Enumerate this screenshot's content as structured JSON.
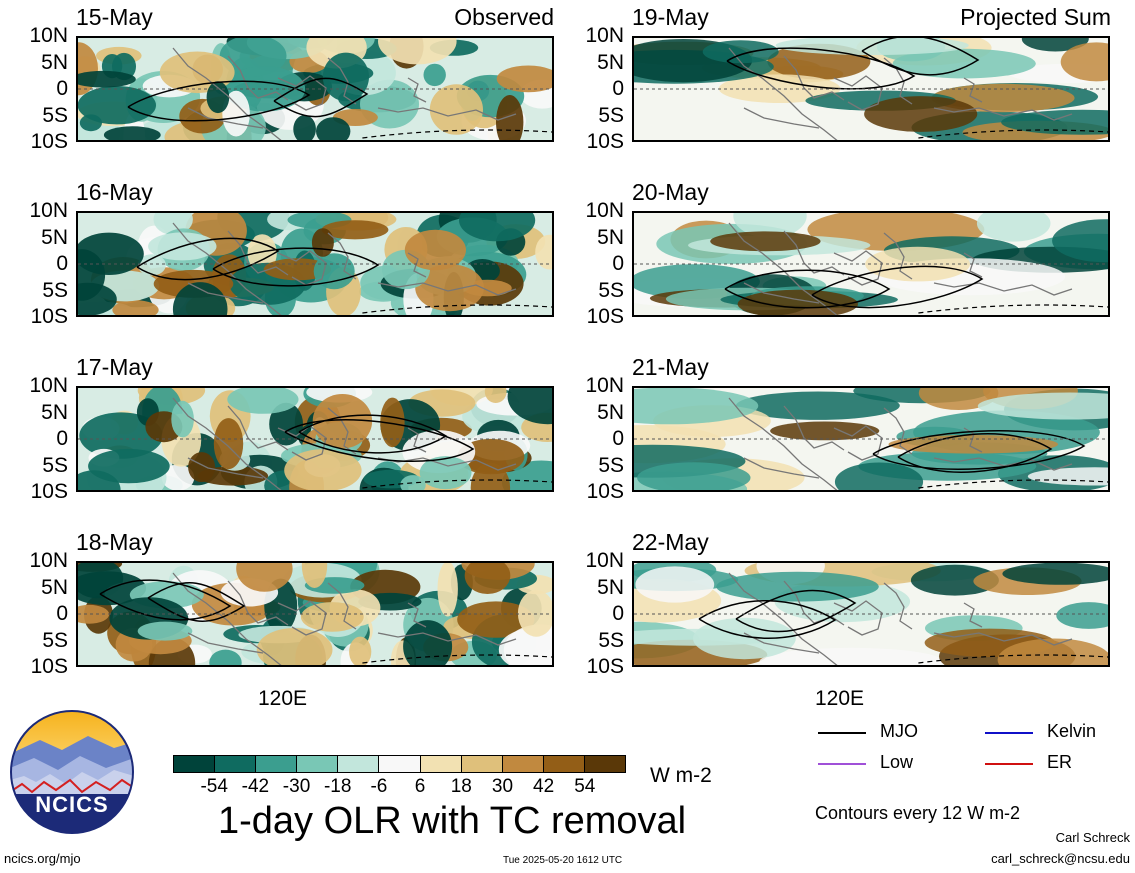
{
  "panels": {
    "left": [
      {
        "date": "15-May",
        "tag": "Observed"
      },
      {
        "date": "16-May",
        "tag": ""
      },
      {
        "date": "17-May",
        "tag": ""
      },
      {
        "date": "18-May",
        "tag": ""
      }
    ],
    "right": [
      {
        "date": "19-May",
        "tag": "Projected Sum"
      },
      {
        "date": "20-May",
        "tag": ""
      },
      {
        "date": "21-May",
        "tag": ""
      },
      {
        "date": "22-May",
        "tag": ""
      }
    ]
  },
  "lat_labels": [
    "10N",
    "5N",
    "0",
    "5S",
    "10S"
  ],
  "lon_label": "120E",
  "colorbar": {
    "ticks": [
      "-54",
      "-42",
      "-30",
      "-18",
      "-6",
      "6",
      "18",
      "30",
      "42",
      "54"
    ],
    "colors": [
      "#00433a",
      "#0f6b60",
      "#3b9e8f",
      "#79c7b5",
      "#c2e6dc",
      "#f8f8f8",
      "#f2e1b2",
      "#dfc07b",
      "#c1893f",
      "#935e17",
      "#5a3808"
    ],
    "units": "W m-2"
  },
  "title": "1-day OLR with TC removal",
  "legend": [
    {
      "label": "MJO",
      "color": "#000000"
    },
    {
      "label": "Kelvin",
      "color": "#1010c8"
    },
    {
      "label": "Low",
      "color": "#a050d8"
    },
    {
      "label": "ER",
      "color": "#d01010"
    }
  ],
  "contour_note": "Contours every 12 W m-2",
  "author": "Carl Schreck",
  "email": "carl_schreck@ncsu.edu",
  "site": "ncics.org/mjo",
  "timestamp": "Tue 2025-05-20 1612 UTC",
  "logo_text": "NCICS"
}
